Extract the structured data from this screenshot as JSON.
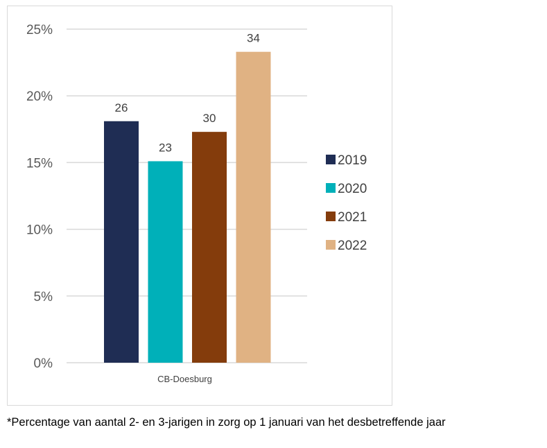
{
  "chart_data": {
    "type": "bar",
    "categories": [
      "CB-Doesburg"
    ],
    "series": [
      {
        "name": "2019",
        "values": [
          18.1
        ],
        "label": "26",
        "color": "#1f2d54"
      },
      {
        "name": "2020",
        "values": [
          15.1
        ],
        "label": "23",
        "color": "#00b0b9"
      },
      {
        "name": "2021",
        "values": [
          17.3
        ],
        "label": "30",
        "color": "#843c0c"
      },
      {
        "name": "2022",
        "values": [
          23.3
        ],
        "label": "34",
        "color": "#e0b283"
      }
    ],
    "ylim": [
      0,
      25
    ],
    "yticks": [
      0,
      5,
      10,
      15,
      20,
      25
    ],
    "ytick_labels": [
      "0%",
      "5%",
      "10%",
      "15%",
      "20%",
      "25%"
    ],
    "grid": true,
    "legend_position": "right"
  },
  "footnote": "*Percentage van aantal 2- en 3-jarigen in zorg op 1 januari van het desbetreffende jaar"
}
